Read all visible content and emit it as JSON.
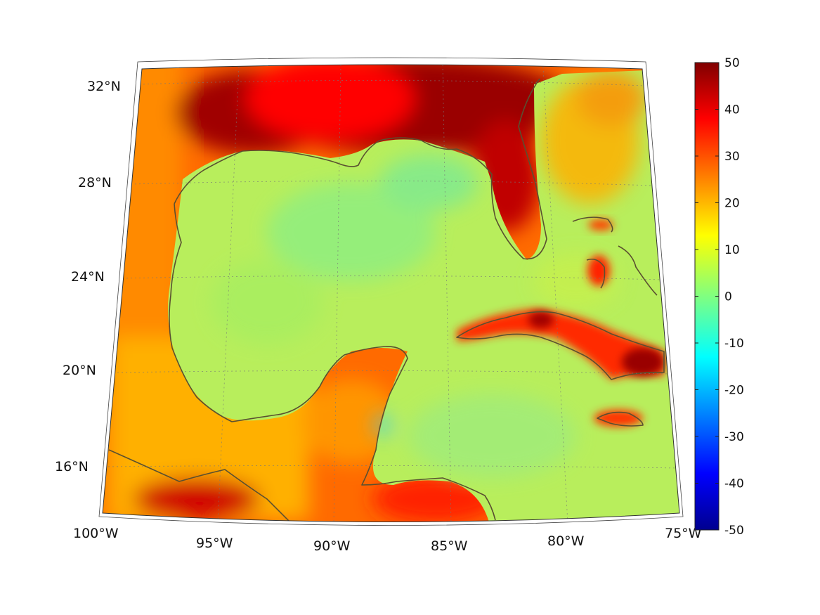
{
  "map": {
    "projection": "lambert-conic",
    "lon_range": [
      -100,
      -75
    ],
    "lat_range": [
      14,
      33
    ],
    "lon_tick_labels": [
      {
        "lon": -100,
        "label": "100°W"
      },
      {
        "lon": -95,
        "label": "95°W"
      },
      {
        "lon": -90,
        "label": "90°W"
      },
      {
        "lon": -85,
        "label": "85°W"
      },
      {
        "lon": -80,
        "label": "80°W"
      },
      {
        "lon": -75,
        "label": "75°W"
      }
    ],
    "lat_tick_labels": [
      {
        "lat": 32,
        "label": "32°N"
      },
      {
        "lat": 28,
        "label": "28°N"
      },
      {
        "lat": 24,
        "label": "24°N"
      },
      {
        "lat": 20,
        "label": "20°N"
      },
      {
        "lat": 16,
        "label": "16°N"
      }
    ],
    "grid": true,
    "land_color": "#ff4a00",
    "ocean_color": "#b6ee5a",
    "coastline_color": "#5a5030"
  },
  "colorbar": {
    "colormap": "jet",
    "range": [
      -50,
      50
    ],
    "tick_labels": [
      "50",
      "40",
      "30",
      "20",
      "10",
      "0",
      "-10",
      "-20",
      "-30",
      "-40",
      "-50"
    ],
    "colors": [
      "#800000",
      "#ff0000",
      "#ff8000",
      "#ffff00",
      "#80ff80",
      "#00ffff",
      "#0080ff",
      "#0000ff",
      "#00008f"
    ]
  }
}
